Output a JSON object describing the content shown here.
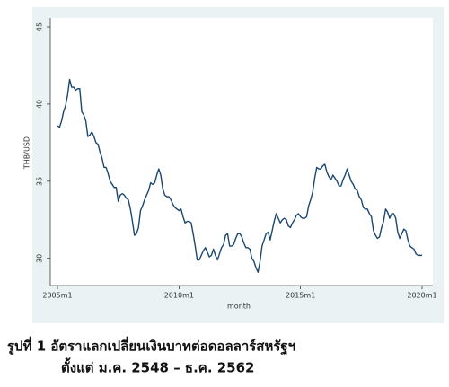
{
  "chart_data": {
    "type": "line",
    "y_label": "THB/USD",
    "x_label": "month",
    "caption_lines": [
      "รูปที่ 1  อัตราแลกเปลี่ยนเงินบาทต่อดอลลาร์สหรัฐฯ",
      "ตั้งแต่ ม.ค. 2548 – ธ.ค. 2562"
    ],
    "x": [
      "2005m1",
      "2005m2",
      "2005m3",
      "2005m4",
      "2005m5",
      "2005m6",
      "2005m7",
      "2005m8",
      "2005m9",
      "2005m10",
      "2005m11",
      "2005m12",
      "2006m1",
      "2006m2",
      "2006m3",
      "2006m4",
      "2006m5",
      "2006m6",
      "2006m7",
      "2006m8",
      "2006m9",
      "2006m10",
      "2006m11",
      "2006m12",
      "2007m1",
      "2007m2",
      "2007m3",
      "2007m4",
      "2007m5",
      "2007m6",
      "2007m7",
      "2007m8",
      "2007m9",
      "2007m10",
      "2007m11",
      "2007m12",
      "2008m1",
      "2008m2",
      "2008m3",
      "2008m4",
      "2008m5",
      "2008m6",
      "2008m7",
      "2008m8",
      "2008m9",
      "2008m10",
      "2008m11",
      "2008m12",
      "2009m1",
      "2009m2",
      "2009m3",
      "2009m4",
      "2009m5",
      "2009m6",
      "2009m7",
      "2009m8",
      "2009m9",
      "2009m10",
      "2009m11",
      "2009m12",
      "2010m1",
      "2010m2",
      "2010m3",
      "2010m4",
      "2010m5",
      "2010m6",
      "2010m7",
      "2010m8",
      "2010m9",
      "2010m10",
      "2010m11",
      "2010m12",
      "2011m1",
      "2011m2",
      "2011m3",
      "2011m4",
      "2011m5",
      "2011m6",
      "2011m7",
      "2011m8",
      "2011m9",
      "2011m10",
      "2011m11",
      "2011m12",
      "2012m1",
      "2012m2",
      "2012m3",
      "2012m4",
      "2012m5",
      "2012m6",
      "2012m7",
      "2012m8",
      "2012m9",
      "2012m10",
      "2012m11",
      "2012m12",
      "2013m1",
      "2013m2",
      "2013m3",
      "2013m4",
      "2013m5",
      "2013m6",
      "2013m7",
      "2013m8",
      "2013m9",
      "2013m10",
      "2013m11",
      "2013m12",
      "2014m1",
      "2014m2",
      "2014m3",
      "2014m4",
      "2014m5",
      "2014m6",
      "2014m7",
      "2014m8",
      "2014m9",
      "2014m10",
      "2014m11",
      "2014m12",
      "2015m1",
      "2015m2",
      "2015m3",
      "2015m4",
      "2015m5",
      "2015m6",
      "2015m7",
      "2015m8",
      "2015m9",
      "2015m10",
      "2015m11",
      "2015m12",
      "2016m1",
      "2016m2",
      "2016m3",
      "2016m4",
      "2016m5",
      "2016m6",
      "2016m7",
      "2016m8",
      "2016m9",
      "2016m10",
      "2016m11",
      "2016m12",
      "2017m1",
      "2017m2",
      "2017m3",
      "2017m4",
      "2017m5",
      "2017m6",
      "2017m7",
      "2017m8",
      "2017m9",
      "2017m10",
      "2017m11",
      "2017m12",
      "2018m1",
      "2018m2",
      "2018m3",
      "2018m4",
      "2018m5",
      "2018m6",
      "2018m7",
      "2018m8",
      "2018m9",
      "2018m10",
      "2018m11",
      "2018m12",
      "2019m1",
      "2019m2",
      "2019m3",
      "2019m4",
      "2019m5",
      "2019m6",
      "2019m7",
      "2019m8",
      "2019m9",
      "2019m10",
      "2019m11",
      "2019m12",
      "2020m1"
    ],
    "series": [
      {
        "color": "#1a476f",
        "values": [
          38.6,
          38.5,
          38.9,
          39.5,
          39.9,
          40.6,
          41.6,
          41.1,
          41.1,
          40.9,
          41.0,
          41.0,
          39.5,
          39.3,
          38.9,
          37.9,
          38.0,
          38.2,
          37.9,
          37.5,
          37.4,
          36.9,
          36.5,
          35.9,
          35.9,
          35.5,
          35.0,
          34.8,
          34.6,
          34.6,
          33.7,
          34.1,
          34.2,
          34.1,
          33.9,
          33.8,
          33.2,
          32.4,
          31.5,
          31.6,
          32.0,
          33.1,
          33.4,
          33.8,
          34.1,
          34.4,
          34.9,
          34.8,
          34.9,
          35.4,
          35.8,
          35.4,
          34.5,
          34.1,
          34.0,
          34.0,
          33.8,
          33.5,
          33.3,
          33.2,
          33.1,
          33.2,
          32.7,
          32.3,
          32.4,
          32.4,
          32.3,
          31.6,
          30.8,
          29.9,
          29.9,
          30.2,
          30.5,
          30.7,
          30.4,
          30.1,
          30.2,
          30.6,
          30.2,
          29.9,
          30.3,
          30.7,
          30.9,
          31.5,
          31.6,
          30.8,
          30.8,
          30.9,
          31.3,
          31.6,
          31.6,
          31.4,
          31.0,
          30.7,
          30.7,
          30.6,
          30.0,
          29.8,
          29.4,
          29.1,
          29.8,
          30.8,
          31.2,
          31.6,
          31.7,
          31.2,
          31.8,
          32.4,
          32.9,
          32.6,
          32.3,
          32.5,
          32.6,
          32.5,
          32.1,
          32.0,
          32.3,
          32.5,
          32.8,
          32.9,
          32.7,
          32.6,
          32.6,
          32.7,
          33.4,
          33.8,
          34.3,
          35.2,
          35.9,
          35.8,
          35.8,
          36.0,
          36.1,
          35.6,
          35.3,
          35.1,
          35.4,
          35.2,
          35.0,
          34.7,
          34.7,
          35.1,
          35.4,
          35.8,
          35.4,
          35.0,
          34.8,
          34.5,
          34.4,
          34.0,
          33.8,
          33.3,
          33.2,
          33.2,
          32.9,
          32.7,
          31.8,
          31.5,
          31.3,
          31.4,
          32.0,
          32.4,
          33.2,
          33.0,
          32.6,
          32.9,
          32.9,
          32.6,
          31.7,
          31.3,
          31.6,
          31.9,
          31.8,
          31.2,
          30.8,
          30.7,
          30.6,
          30.3,
          30.2,
          30.2,
          30.2
        ]
      }
    ],
    "ylim": [
      29,
      45
    ],
    "yticks": [
      30,
      35,
      40,
      45
    ],
    "xticks": [
      "2005m1",
      "2010m1",
      "2015m1",
      "2020m1"
    ]
  }
}
